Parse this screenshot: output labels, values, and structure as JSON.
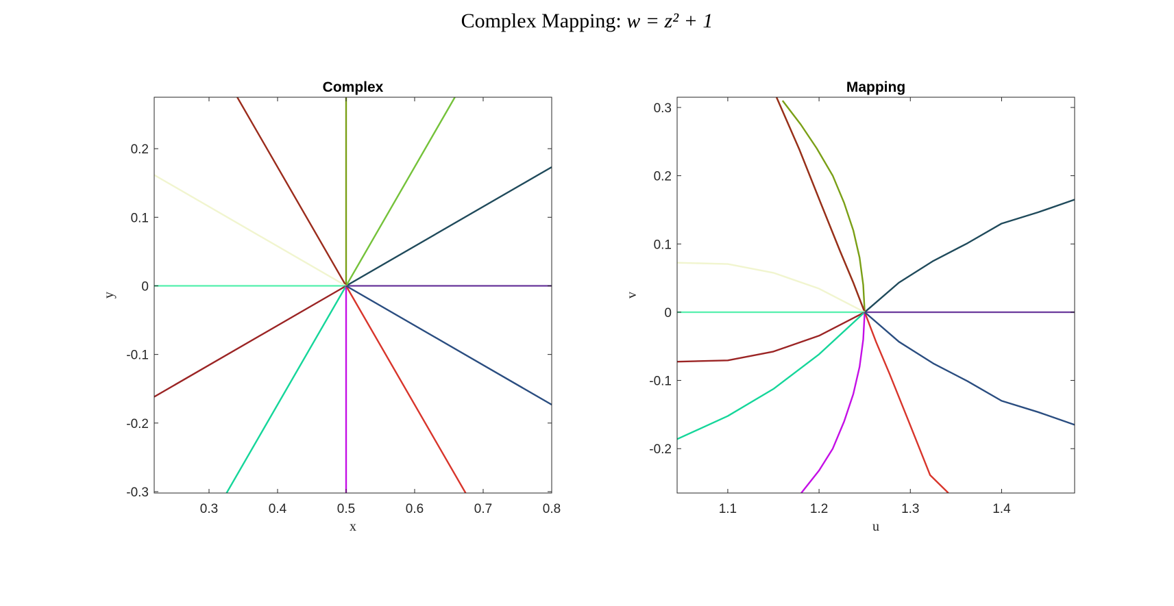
{
  "figure": {
    "title_text": "Complex Mapping: ",
    "title_math": "w = z² + 1"
  },
  "chart_data": [
    {
      "type": "line",
      "title": "Complex",
      "xlabel": "x",
      "ylabel": "y",
      "xlim": [
        0.22,
        0.8
      ],
      "ylim": [
        -0.302,
        0.275
      ],
      "xticks": [
        0.3,
        0.4,
        0.5,
        0.6,
        0.7,
        0.8
      ],
      "yticks": [
        -0.3,
        -0.2,
        -0.1,
        0,
        0.1,
        0.2
      ],
      "xtick_labels": [
        "0.3",
        "0.4",
        "0.5",
        "0.6",
        "0.7",
        "0.8"
      ],
      "ytick_labels": [
        "-0.3",
        "-0.2",
        "-0.1",
        "0",
        "0.1",
        "0.2"
      ],
      "grid": false,
      "center": [
        0.5,
        0
      ],
      "series": [
        {
          "color": "#6f3f9f",
          "x": [
            0.5,
            0.8
          ],
          "y": [
            0,
            0
          ]
        },
        {
          "color": "#1f4a5b",
          "x": [
            0.5,
            0.8
          ],
          "y": [
            0,
            0.1732
          ]
        },
        {
          "color": "#74c23a",
          "x": [
            0.5,
            0.6587
          ],
          "y": [
            0,
            0.275
          ]
        },
        {
          "color": "#7a9f16",
          "x": [
            0.5,
            0.5
          ],
          "y": [
            0,
            0.275
          ]
        },
        {
          "color": "#9b2c1c",
          "x": [
            0.5,
            0.3412
          ],
          "y": [
            0,
            0.275
          ]
        },
        {
          "color": "#f1f5cf",
          "x": [
            0.5,
            0.22
          ],
          "y": [
            0,
            0.1617
          ]
        },
        {
          "color": "#5bf0b0",
          "x": [
            0.5,
            0.22
          ],
          "y": [
            0,
            0
          ]
        },
        {
          "color": "#9b2424",
          "x": [
            0.5,
            0.22
          ],
          "y": [
            0,
            -0.1617
          ]
        },
        {
          "color": "#15d69a",
          "x": [
            0.5,
            0.3256
          ],
          "y": [
            0,
            -0.302
          ]
        },
        {
          "color": "#c40fe6",
          "x": [
            0.5,
            0.5
          ],
          "y": [
            0,
            -0.302
          ]
        },
        {
          "color": "#d8352b",
          "x": [
            0.5,
            0.6744
          ],
          "y": [
            0,
            -0.302
          ]
        },
        {
          "color": "#2a4d80",
          "x": [
            0.5,
            0.8
          ],
          "y": [
            0,
            -0.1732
          ]
        }
      ]
    },
    {
      "type": "line",
      "title": "Mapping",
      "xlabel": "u",
      "ylabel": "v",
      "xlim": [
        1.0445,
        1.48
      ],
      "ylim": [
        -0.265,
        0.315
      ],
      "xticks": [
        1.1,
        1.2,
        1.3,
        1.4
      ],
      "yticks": [
        -0.2,
        -0.1,
        0,
        0.1,
        0.2,
        0.3
      ],
      "xtick_labels": [
        "1.1",
        "1.2",
        "1.3",
        "1.4"
      ],
      "ytick_labels": [
        "-0.2",
        "-0.1",
        "0",
        "0.1",
        "0.2",
        "0.3"
      ],
      "grid": false,
      "center": [
        1.25,
        0
      ],
      "series": [
        {
          "color": "#6f3f9f",
          "x": [
            1.25,
            1.48
          ],
          "y": [
            0,
            0
          ]
        },
        {
          "color": "#1f4a5b",
          "x": [
            1.25,
            1.2875,
            1.325,
            1.3625,
            1.4,
            1.44,
            1.48
          ],
          "y": [
            0,
            0.0433,
            0.075,
            0.101,
            0.1299,
            0.1464,
            0.165
          ]
        },
        {
          "color": "#74c23a",
          "x": [
            1.25,
            1.2374,
            1.2228,
            1.2022,
            1.1783,
            1.1534
          ],
          "y": [
            0,
            0.0437,
            0.0902,
            0.1587,
            0.2388,
            0.315
          ]
        },
        {
          "color": "#7a9f16",
          "x": [
            1.25,
            1.2484,
            1.2444,
            1.2375,
            1.2275,
            1.215,
            1.1975,
            1.18,
            1.16
          ],
          "y": [
            0,
            0.04,
            0.08,
            0.12,
            0.16,
            0.2,
            0.24,
            0.275,
            0.31
          ]
        },
        {
          "color": "#9b2c1c",
          "x": [
            1.25,
            1.2374,
            1.2228,
            1.2022,
            1.1783,
            1.1534
          ],
          "y": [
            0,
            0.0437,
            0.0902,
            0.1587,
            0.2388,
            0.315
          ]
        },
        {
          "color": "#f1f5cf",
          "x": [
            1.25,
            1.2,
            1.15,
            1.1,
            1.0445
          ],
          "y": [
            0,
            0.0345,
            0.0577,
            0.0706,
            0.0725
          ]
        },
        {
          "color": "#5bf0b0",
          "x": [
            1.25,
            1.0445
          ],
          "y": [
            0,
            0
          ]
        },
        {
          "color": "#9b2424",
          "x": [
            1.25,
            1.2,
            1.15,
            1.1,
            1.0445
          ],
          "y": [
            0,
            -0.0345,
            -0.0577,
            -0.0706,
            -0.0725
          ]
        },
        {
          "color": "#15d69a",
          "x": [
            1.25,
            1.2,
            1.15,
            1.1,
            1.0445
          ],
          "y": [
            0,
            -0.0617,
            -0.1125,
            -0.1522,
            -0.186
          ]
        },
        {
          "color": "#c40fe6",
          "x": [
            1.25,
            1.2484,
            1.2444,
            1.2375,
            1.2275,
            1.215,
            1.2,
            1.1805
          ],
          "y": [
            0,
            -0.04,
            -0.08,
            -0.12,
            -0.16,
            -0.2,
            -0.232,
            -0.265
          ]
        },
        {
          "color": "#d8352b",
          "x": [
            1.25,
            1.2625,
            1.2772,
            1.2978,
            1.3217,
            1.3417
          ],
          "y": [
            0,
            -0.0437,
            -0.0902,
            -0.1587,
            -0.2388,
            -0.265
          ]
        },
        {
          "color": "#2a4d80",
          "x": [
            1.25,
            1.2875,
            1.325,
            1.3625,
            1.4,
            1.44,
            1.48
          ],
          "y": [
            0,
            -0.0433,
            -0.075,
            -0.101,
            -0.1299,
            -0.1464,
            -0.165
          ]
        }
      ]
    }
  ]
}
